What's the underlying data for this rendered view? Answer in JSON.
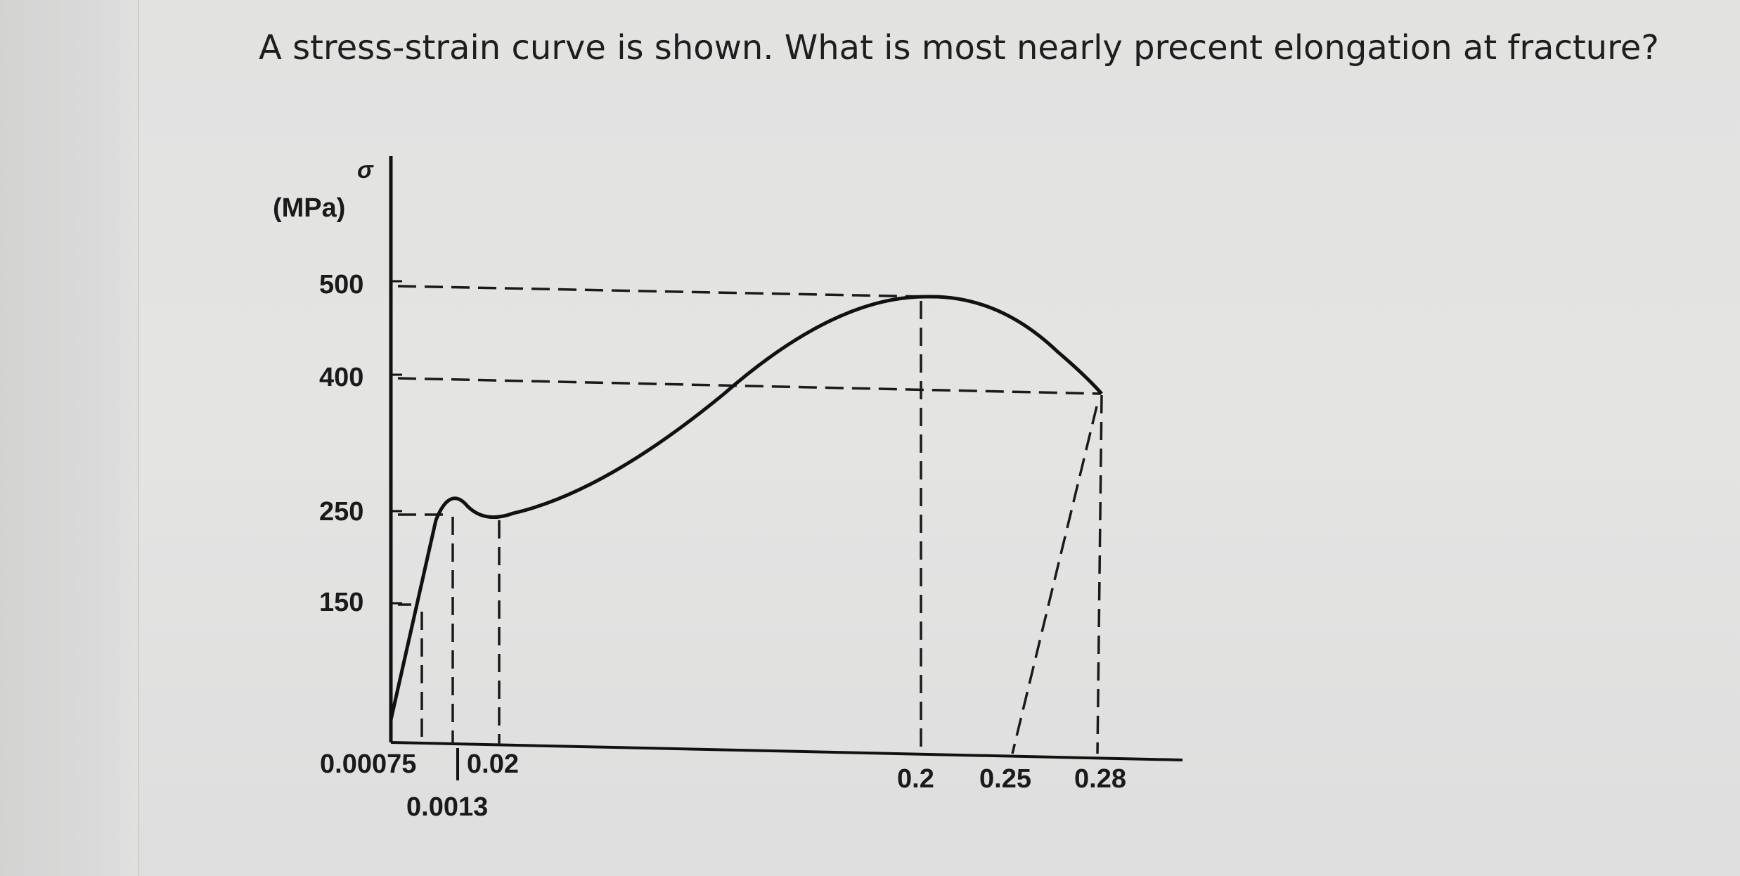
{
  "question": "A stress-strain curve is shown. What is most nearly precent elongation at fracture?",
  "chart_data": {
    "type": "line",
    "title": "",
    "ylabel_symbol": "σ",
    "ylabel_unit": "(MPa)",
    "yticks": [
      "500",
      "400",
      "250",
      "150"
    ],
    "xticks": [
      "0.00075",
      "0.02",
      "0.0013",
      "0.2",
      "0.25",
      "0.28"
    ],
    "ytick_values": [
      500,
      400,
      250,
      150
    ],
    "xtick_values": [
      0.00075,
      0.02,
      0.0013,
      0.2,
      0.25,
      0.28
    ],
    "series": [
      {
        "x": [
          0.0,
          0.00075,
          0.0013,
          0.01,
          0.02,
          0.05,
          0.1,
          0.15,
          0.2,
          0.24,
          0.28
        ],
        "y": [
          0,
          150,
          250,
          240,
          248,
          300,
          400,
          470,
          500,
          480,
          400
        ]
      }
    ],
    "reference_lines": [
      {
        "type": "h",
        "y": 500,
        "to_x": 0.2
      },
      {
        "type": "h",
        "y": 400,
        "to_x": 0.28
      },
      {
        "type": "v",
        "x": 0.2
      },
      {
        "type": "v",
        "x": 0.28
      },
      {
        "type": "unload",
        "from_x": 0.28,
        "to_x": 0.25
      }
    ],
    "grid": false,
    "colors": {
      "curve": "#111111",
      "background": "#e3e3e2"
    }
  }
}
